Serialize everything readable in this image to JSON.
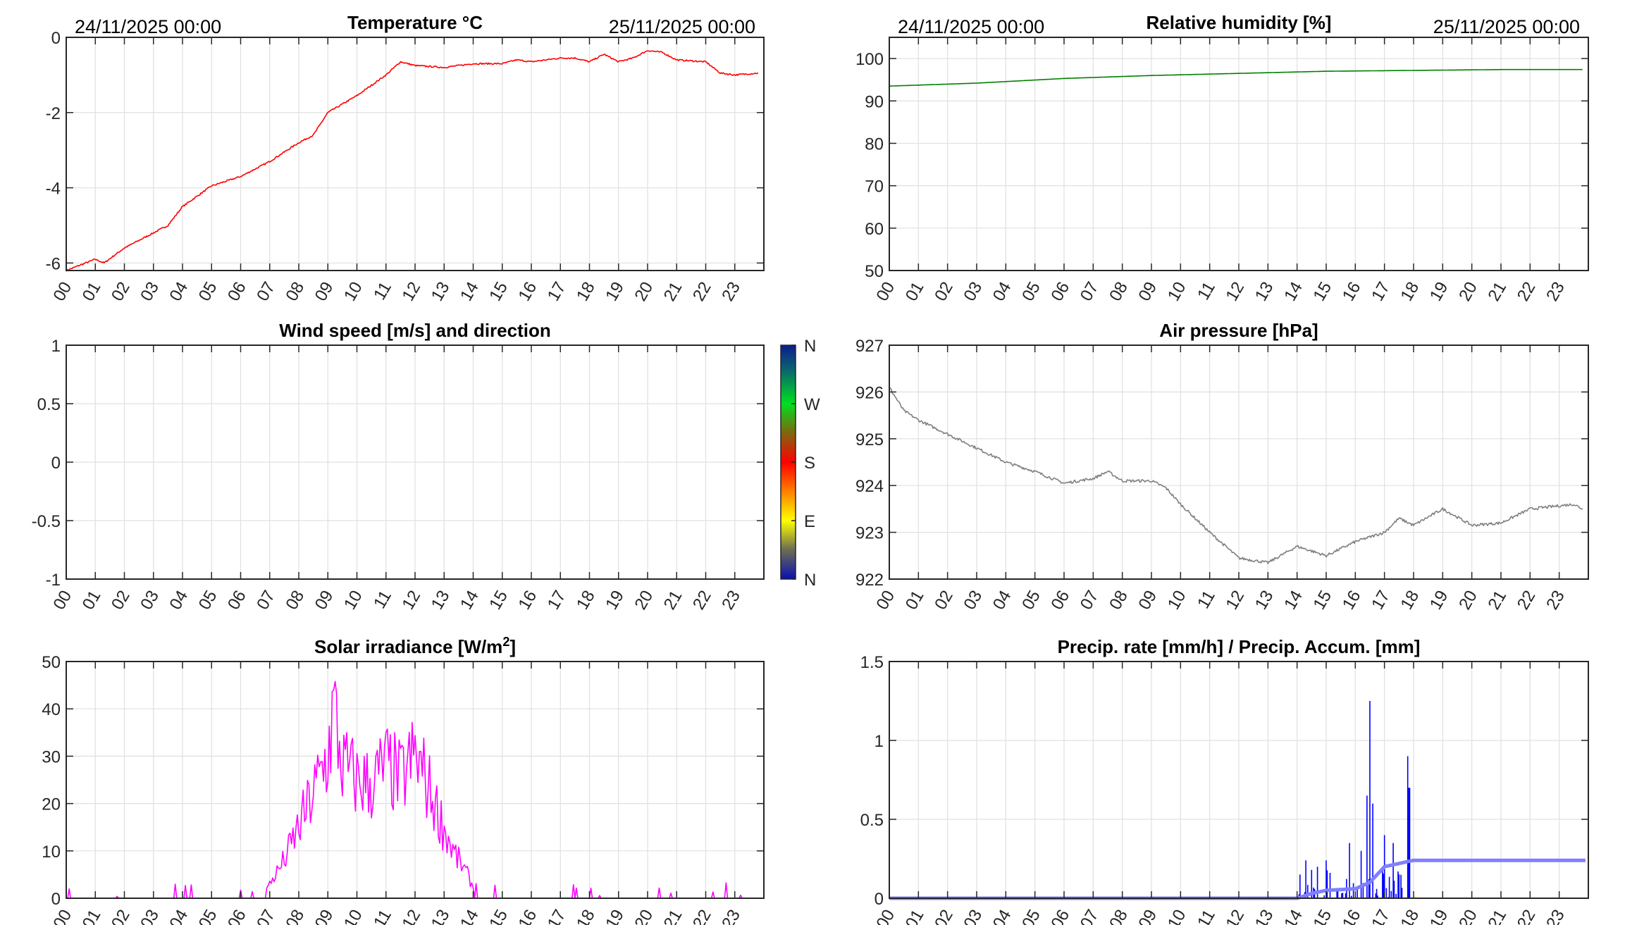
{
  "colors": {
    "temperature": "#ff0000",
    "humidity": "#008000",
    "pressure": "#808080",
    "solar": "#ff00ff",
    "precip_rate": "#0000ff",
    "precip_accum": "#7f7fff"
  },
  "chart_data": [
    {
      "id": "temperature",
      "type": "line",
      "title": "Temperature °C",
      "date_start": "24/11/2025 00:00",
      "date_end": "25/11/2025 00:00",
      "xlim": [
        0,
        24
      ],
      "ylim": [
        -6.2,
        0
      ],
      "yticks": [
        -6,
        -4,
        -2,
        0
      ],
      "ytick_labels": [
        "-6",
        "-4",
        "-2",
        "0"
      ],
      "series": [
        {
          "name": "Temperature",
          "color": "#ff0000",
          "x": [
            0,
            0.5,
            1,
            1.3,
            2,
            3,
            3.5,
            4,
            5,
            6,
            7,
            8,
            8.5,
            9,
            10,
            11,
            11.5,
            12,
            13,
            14,
            15,
            15.5,
            16,
            17,
            17.5,
            18,
            18.5,
            19,
            19.5,
            20,
            20.5,
            21,
            22,
            22.5,
            23,
            23.8
          ],
          "y": [
            -6.2,
            -6.05,
            -5.9,
            -6.0,
            -5.6,
            -5.2,
            -5.0,
            -4.5,
            -3.95,
            -3.7,
            -3.3,
            -2.8,
            -2.6,
            -2.0,
            -1.55,
            -1.0,
            -0.65,
            -0.75,
            -0.8,
            -0.7,
            -0.7,
            -0.6,
            -0.65,
            -0.55,
            -0.55,
            -0.65,
            -0.45,
            -0.65,
            -0.55,
            -0.35,
            -0.4,
            -0.6,
            -0.65,
            -0.95,
            -1.0,
            -0.95
          ]
        }
      ]
    },
    {
      "id": "humidity",
      "type": "line",
      "title": "Relative humidity [%]",
      "date_start": "24/11/2025 00:00",
      "date_end": "25/11/2025 00:00",
      "xlim": [
        0,
        24
      ],
      "ylim": [
        50,
        105
      ],
      "yticks": [
        50,
        60,
        70,
        80,
        90,
        100
      ],
      "ytick_labels": [
        "50",
        "60",
        "70",
        "80",
        "90",
        "100"
      ],
      "series": [
        {
          "name": "Humidity",
          "color": "#008000",
          "x": [
            0,
            3,
            6,
            9,
            12,
            15,
            18,
            21,
            23.8
          ],
          "y": [
            93.5,
            94.2,
            95.3,
            96.0,
            96.5,
            97.0,
            97.2,
            97.4,
            97.4
          ]
        }
      ]
    },
    {
      "id": "wind",
      "type": "line",
      "title": "Wind speed [m/s] and direction",
      "xlim": [
        0,
        24
      ],
      "ylim": [
        -1,
        1
      ],
      "yticks": [
        -1,
        -0.5,
        0,
        0.5,
        1
      ],
      "ytick_labels": [
        "-1",
        "-0.5",
        "0",
        "0.5",
        "1"
      ],
      "series": [],
      "colorbar": {
        "labels": [
          "N",
          "W",
          "S",
          "E",
          "N"
        ]
      }
    },
    {
      "id": "pressure",
      "type": "line",
      "title": "Air pressure [hPa]",
      "xlim": [
        0,
        24
      ],
      "ylim": [
        922,
        927
      ],
      "yticks": [
        922,
        923,
        924,
        925,
        926,
        927
      ],
      "ytick_labels": [
        "922",
        "923",
        "924",
        "925",
        "926",
        "927"
      ],
      "series": [
        {
          "name": "Pressure",
          "color": "#808080",
          "x": [
            0,
            0.5,
            1,
            2,
            3,
            4,
            5,
            6,
            7,
            7.5,
            8,
            9,
            9.5,
            10,
            11,
            12,
            13,
            14,
            15,
            16,
            17,
            17.5,
            18,
            19,
            20,
            21,
            22,
            23.5,
            23.8
          ],
          "y": [
            926.1,
            925.6,
            925.4,
            925.1,
            924.8,
            924.5,
            924.3,
            924.05,
            924.15,
            924.3,
            924.1,
            924.1,
            923.95,
            923.6,
            923.0,
            922.45,
            922.35,
            922.7,
            922.5,
            922.8,
            923.0,
            923.3,
            923.15,
            923.5,
            923.15,
            923.2,
            923.5,
            923.6,
            923.5
          ]
        }
      ]
    },
    {
      "id": "solar",
      "type": "line",
      "title_pre": "Solar irradiance [W/m",
      "title_sup": "2",
      "title_post": "]",
      "xlim": [
        0,
        24
      ],
      "ylim": [
        0,
        50
      ],
      "yticks": [
        0,
        10,
        20,
        30,
        40,
        50
      ],
      "ytick_labels": [
        "0",
        "10",
        "20",
        "30",
        "40",
        "50"
      ],
      "series": [
        {
          "name": "Solar irradiance",
          "color": "#ff00ff",
          "x": [
            0,
            3.7,
            3.75,
            3.8,
            6.8,
            7,
            7.5,
            8,
            8.5,
            9,
            9.2,
            9.5,
            10,
            10.5,
            11,
            11.5,
            12,
            12.3,
            12.8,
            13.3,
            13.8,
            14.1,
            14.3,
            24
          ],
          "y": [
            0,
            0,
            3,
            0,
            1,
            3,
            8,
            15,
            22,
            30,
            40,
            28,
            25,
            24,
            28,
            25,
            30,
            26,
            18,
            10,
            5,
            1,
            0,
            0
          ]
        }
      ]
    },
    {
      "id": "precip",
      "type": "line",
      "title": "Precip. rate [mm/h] / Precip. Accum. [mm]",
      "xlim": [
        0,
        24
      ],
      "ylim": [
        0,
        1.5
      ],
      "yticks": [
        0,
        0.5,
        1,
        1.5
      ],
      "ytick_labels": [
        "0",
        "0.5",
        "1",
        "1.5"
      ],
      "series": [
        {
          "name": "Precip. rate",
          "color": "#0000ff",
          "x": [
            14.1,
            14.3,
            14.5,
            14.7,
            15.0,
            15.8,
            16.2,
            16.4,
            16.5,
            16.6,
            17.0,
            17.3,
            17.8,
            17.85
          ],
          "y": [
            0.15,
            0.24,
            0.18,
            0.2,
            0.24,
            0.35,
            0.3,
            0.65,
            1.25,
            0.6,
            0.4,
            0.35,
            0.9,
            0.7
          ]
        },
        {
          "name": "Precip. Accum.",
          "color": "#7f7fff",
          "x": [
            0,
            14,
            14.5,
            15,
            16,
            16.5,
            17,
            17.5,
            18,
            24
          ],
          "y": [
            0,
            0,
            0.03,
            0.05,
            0.06,
            0.1,
            0.2,
            0.22,
            0.24,
            0.24
          ]
        }
      ]
    }
  ],
  "xtick_labels": [
    "00",
    "01",
    "02",
    "03",
    "04",
    "05",
    "06",
    "07",
    "08",
    "09",
    "10",
    "11",
    "12",
    "13",
    "14",
    "15",
    "16",
    "17",
    "18",
    "19",
    "20",
    "21",
    "22",
    "23"
  ]
}
